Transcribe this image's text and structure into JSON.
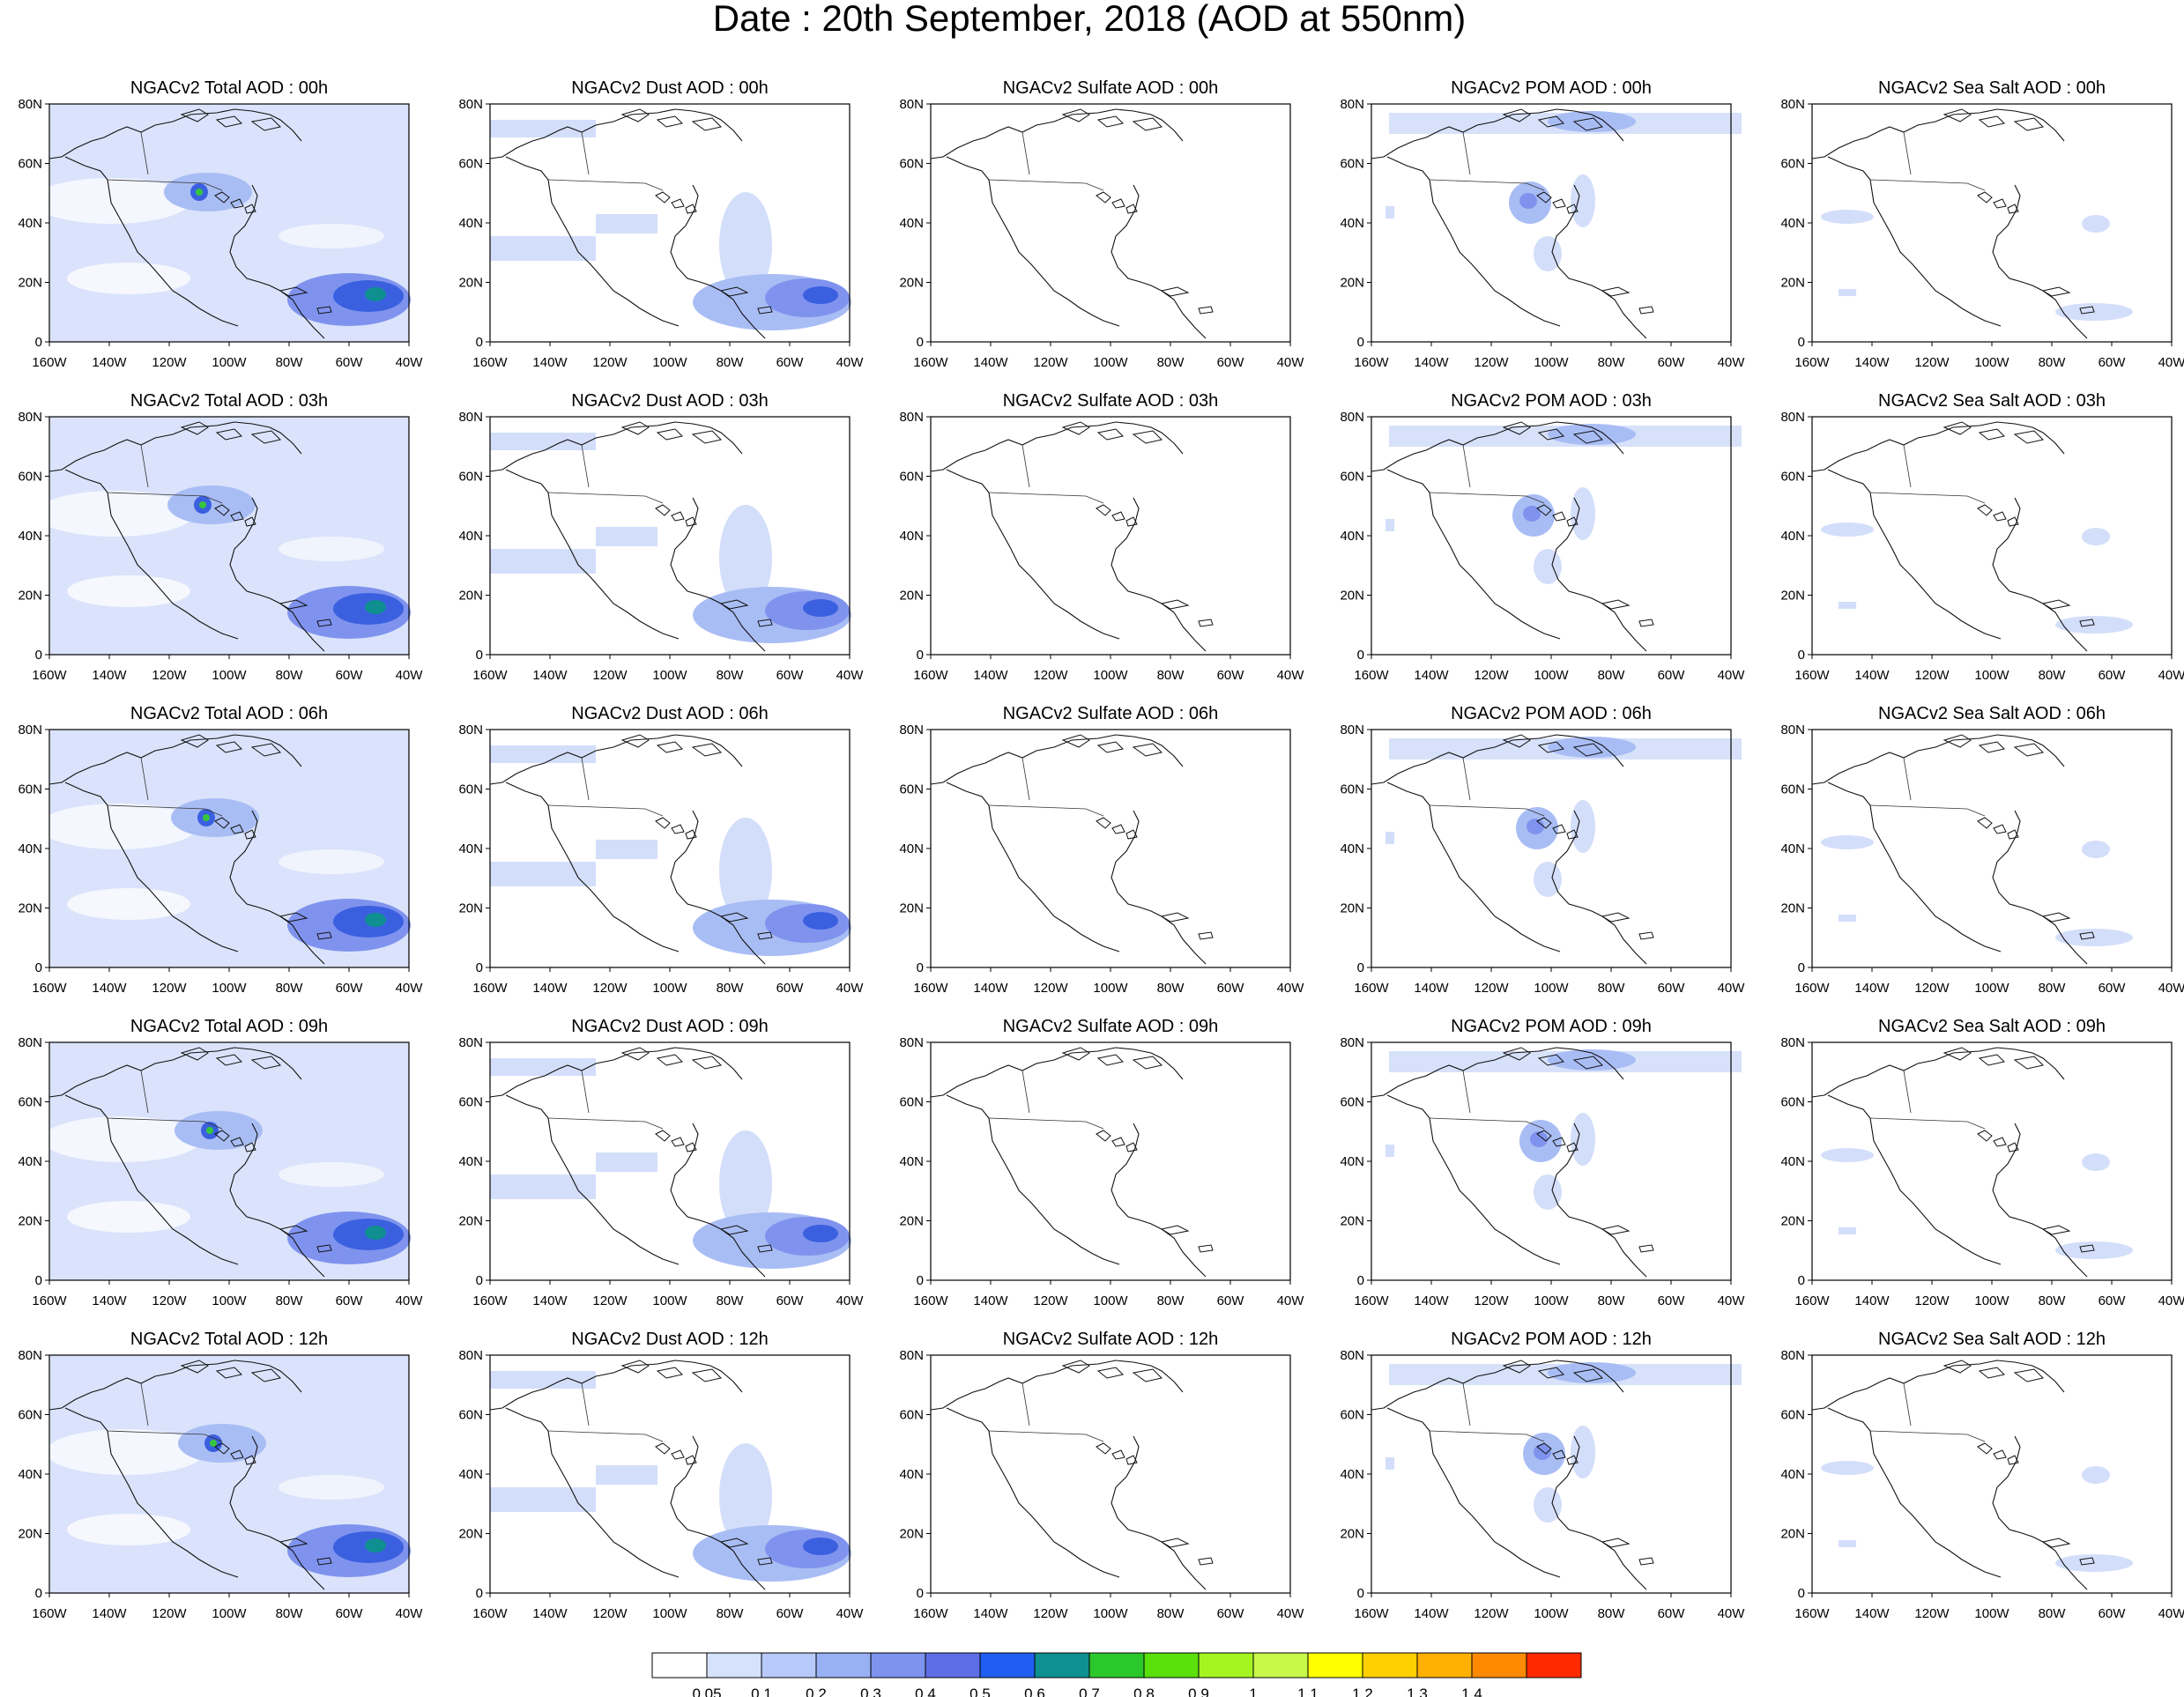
{
  "title": "Date : 20th September, 2018 (AOD at 550nm)",
  "axes": {
    "lon_ticks": [
      "160W",
      "140W",
      "120W",
      "100W",
      "80W",
      "60W",
      "40W"
    ],
    "lat_ticks": [
      "0",
      "20N",
      "40N",
      "60N",
      "80N"
    ],
    "lon_range": [
      -160,
      -40
    ],
    "lat_range": [
      0,
      80
    ]
  },
  "panels": [
    [
      "NGACv2 Total AOD : 00h",
      "NGACv2 Dust AOD : 00h",
      "NGACv2 Sulfate AOD : 00h",
      "NGACv2 POM AOD : 00h",
      "NGACv2 Sea Salt AOD : 00h"
    ],
    [
      "NGACv2 Total AOD : 03h",
      "NGACv2 Dust AOD : 03h",
      "NGACv2 Sulfate AOD : 03h",
      "NGACv2 POM AOD : 03h",
      "NGACv2 Sea Salt AOD : 03h"
    ],
    [
      "NGACv2 Total AOD : 06h",
      "NGACv2 Dust AOD : 06h",
      "NGACv2 Sulfate AOD : 06h",
      "NGACv2 POM AOD : 06h",
      "NGACv2 Sea Salt AOD : 06h"
    ],
    [
      "NGACv2 Total AOD : 09h",
      "NGACv2 Dust AOD : 09h",
      "NGACv2 Sulfate AOD : 09h",
      "NGACv2 POM AOD : 09h",
      "NGACv2 Sea Salt  AOD : 09h"
    ],
    [
      "NGACv2 Total AOD  : 12h",
      "NGACv2 Dust AOD : 12h",
      "NGACv2 Sulfate AOD : 12h",
      "NGACv2 POM  AOD : 12h",
      "NGACv2 Sea Salt  AOD : 12h"
    ]
  ],
  "colorbar": {
    "labels": [
      "0.05",
      "0.1",
      "0.2",
      "0.3",
      "0.4",
      "0.5",
      "0.6",
      "0.7",
      "0.8",
      "0.9",
      "1",
      "1.1",
      "1.2",
      "1.3",
      "1.4"
    ],
    "colors": [
      "#ffffff",
      "#d6e2fc",
      "#b7c9f8",
      "#98b0f4",
      "#7d93ee",
      "#5e6ee6",
      "#1f5ef0",
      "#0f9090",
      "#2bc82b",
      "#5ae00a",
      "#a4f522",
      "#c9f74a",
      "#ffff00",
      "#ffd000",
      "#ffb000",
      "#ff8a00",
      "#ff2a00"
    ]
  }
}
